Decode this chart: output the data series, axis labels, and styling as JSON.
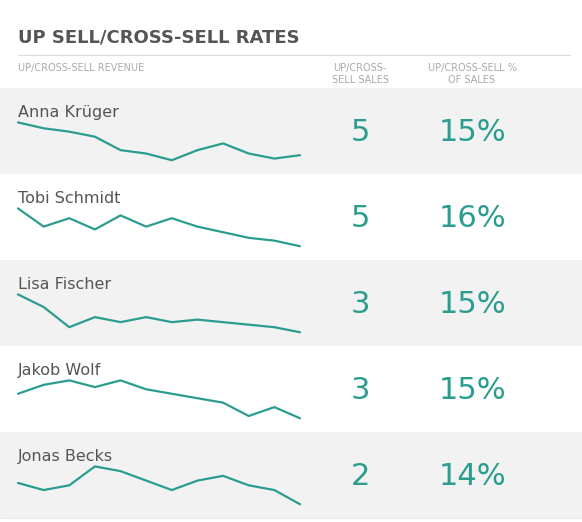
{
  "title": "UP SELL/CROSS-SELL RATES",
  "col1_header": "UP/CROSS-SELL REVENUE",
  "col2_header": "UP/CROSS-\nSELL SALES",
  "col3_header": "UP/CROSS-SELL %\nOF SALES",
  "rows": [
    {
      "name": "Anna Krüger",
      "sales": "5",
      "pct": "15%",
      "sparkline": [
        0.05,
        0.12,
        0.16,
        0.22,
        0.38,
        0.42,
        0.5,
        0.38,
        0.3,
        0.42,
        0.48,
        0.44
      ],
      "bg": "#f2f2f2"
    },
    {
      "name": "Tobi Schmidt",
      "sales": "5",
      "pct": "16%",
      "sparkline": [
        0.05,
        0.18,
        0.12,
        0.2,
        0.1,
        0.18,
        0.12,
        0.18,
        0.22,
        0.26,
        0.28,
        0.32
      ],
      "bg": "#ffffff"
    },
    {
      "name": "Lisa Fischer",
      "sales": "3",
      "pct": "15%",
      "sparkline": [
        0.15,
        0.2,
        0.28,
        0.24,
        0.26,
        0.24,
        0.26,
        0.25,
        0.26,
        0.27,
        0.28,
        0.3
      ],
      "bg": "#f2f2f2"
    },
    {
      "name": "Jakob Wolf",
      "sales": "3",
      "pct": "15%",
      "sparkline": [
        0.3,
        0.22,
        0.18,
        0.24,
        0.18,
        0.26,
        0.3,
        0.34,
        0.38,
        0.5,
        0.42,
        0.52
      ],
      "bg": "#ffffff"
    },
    {
      "name": "Jonas Becks",
      "sales": "2",
      "pct": "14%",
      "sparkline": [
        0.35,
        0.38,
        0.36,
        0.28,
        0.3,
        0.34,
        0.38,
        0.34,
        0.32,
        0.36,
        0.38,
        0.44
      ],
      "bg": "#f2f2f2"
    }
  ],
  "teal_color": "#2a9d8f",
  "title_color": "#555555",
  "header_color": "#aaaaaa",
  "name_color": "#555555",
  "line_color": "#2a9d8f",
  "divider_color": "#dddddd"
}
